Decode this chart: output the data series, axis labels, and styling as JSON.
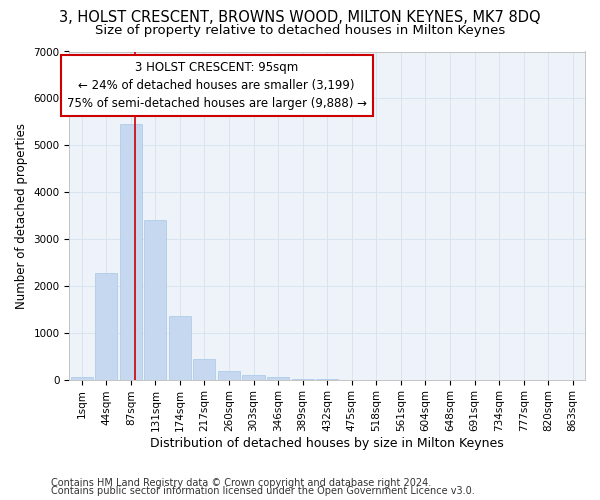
{
  "title": "3, HOLST CRESCENT, BROWNS WOOD, MILTON KEYNES, MK7 8DQ",
  "subtitle": "Size of property relative to detached houses in Milton Keynes",
  "xlabel": "Distribution of detached houses by size in Milton Keynes",
  "ylabel": "Number of detached properties",
  "footer1": "Contains HM Land Registry data © Crown copyright and database right 2024.",
  "footer2": "Contains public sector information licensed under the Open Government Licence v3.0.",
  "categories": [
    "1sqm",
    "44sqm",
    "87sqm",
    "131sqm",
    "174sqm",
    "217sqm",
    "260sqm",
    "303sqm",
    "346sqm",
    "389sqm",
    "432sqm",
    "475sqm",
    "518sqm",
    "561sqm",
    "604sqm",
    "648sqm",
    "691sqm",
    "734sqm",
    "777sqm",
    "820sqm",
    "863sqm"
  ],
  "values": [
    50,
    2280,
    5450,
    3400,
    1350,
    450,
    175,
    100,
    55,
    5,
    5,
    1,
    0,
    0,
    0,
    0,
    0,
    0,
    0,
    0,
    0
  ],
  "bar_color": "#c5d8f0",
  "bar_edgecolor": "#a8c8e8",
  "grid_color": "#d8e4f0",
  "bg_color": "#ffffff",
  "ax_bg_color": "#eef3fa",
  "property_line_x": 2.18,
  "annotation_text": "3 HOLST CRESCENT: 95sqm\n← 24% of detached houses are smaller (3,199)\n75% of semi-detached houses are larger (9,888) →",
  "annotation_box_color": "#ffffff",
  "annotation_box_edgecolor": "#cc0000",
  "property_line_color": "#cc0000",
  "ylim": [
    0,
    7000
  ],
  "yticks": [
    0,
    1000,
    2000,
    3000,
    4000,
    5000,
    6000,
    7000
  ],
  "title_fontsize": 10.5,
  "subtitle_fontsize": 9.5,
  "xlabel_fontsize": 9,
  "ylabel_fontsize": 8.5,
  "tick_fontsize": 7.5,
  "footer_fontsize": 7,
  "annot_fontsize": 8.5
}
